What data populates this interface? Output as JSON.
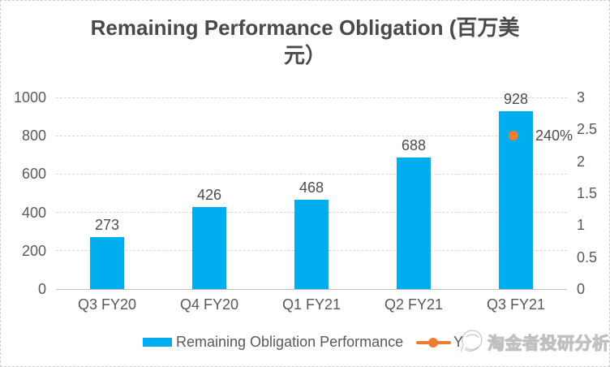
{
  "title": {
    "text": "Remaining Performance Obligation (百万美元）",
    "line1": "Remaining Performance Obligation (百万美",
    "line2": "元）"
  },
  "chart_data": {
    "type": "bar",
    "title": "Remaining Performance Obligation (百万美元）",
    "categories": [
      "Q3 FY20",
      "Q4 FY20",
      "Q1 FY21",
      "Q2 FY21",
      "Q3 FY21"
    ],
    "series": [
      {
        "name": "Remaining Obligation Performance",
        "type": "bar",
        "axis": "left",
        "values": [
          273,
          426,
          468,
          688,
          928
        ],
        "data_labels": [
          "273",
          "426",
          "468",
          "688",
          "928"
        ],
        "color": "#00AEEF"
      },
      {
        "name": "Y",
        "type": "line-marker",
        "axis": "right",
        "points": [
          {
            "category": "Q3 FY21",
            "value": 2.4,
            "label": "240%"
          }
        ],
        "color": "#ED7D31"
      }
    ],
    "left_axis": {
      "min": 0,
      "max": 1000,
      "ticks": [
        0,
        200,
        400,
        600,
        800,
        1000
      ]
    },
    "right_axis": {
      "min": 0,
      "max": 3,
      "ticks": [
        "0",
        "0.5",
        "1",
        "1.5",
        "2",
        "2.5",
        "3"
      ]
    },
    "grid": true,
    "legend_position": "bottom"
  },
  "legend": {
    "items": [
      {
        "label": "Remaining Obligation Performance",
        "swatch": "bar",
        "color": "#00AEEF"
      },
      {
        "label": "Y",
        "swatch": "line-marker",
        "color": "#ED7D31"
      }
    ]
  },
  "watermark": {
    "text": "淘金者投研分析"
  },
  "colors": {
    "bar": "#00AEEF",
    "marker": "#ED7D31",
    "axis_text": "#595959",
    "gridline": "#d9d9d9",
    "title_text": "#4a4a4a"
  }
}
